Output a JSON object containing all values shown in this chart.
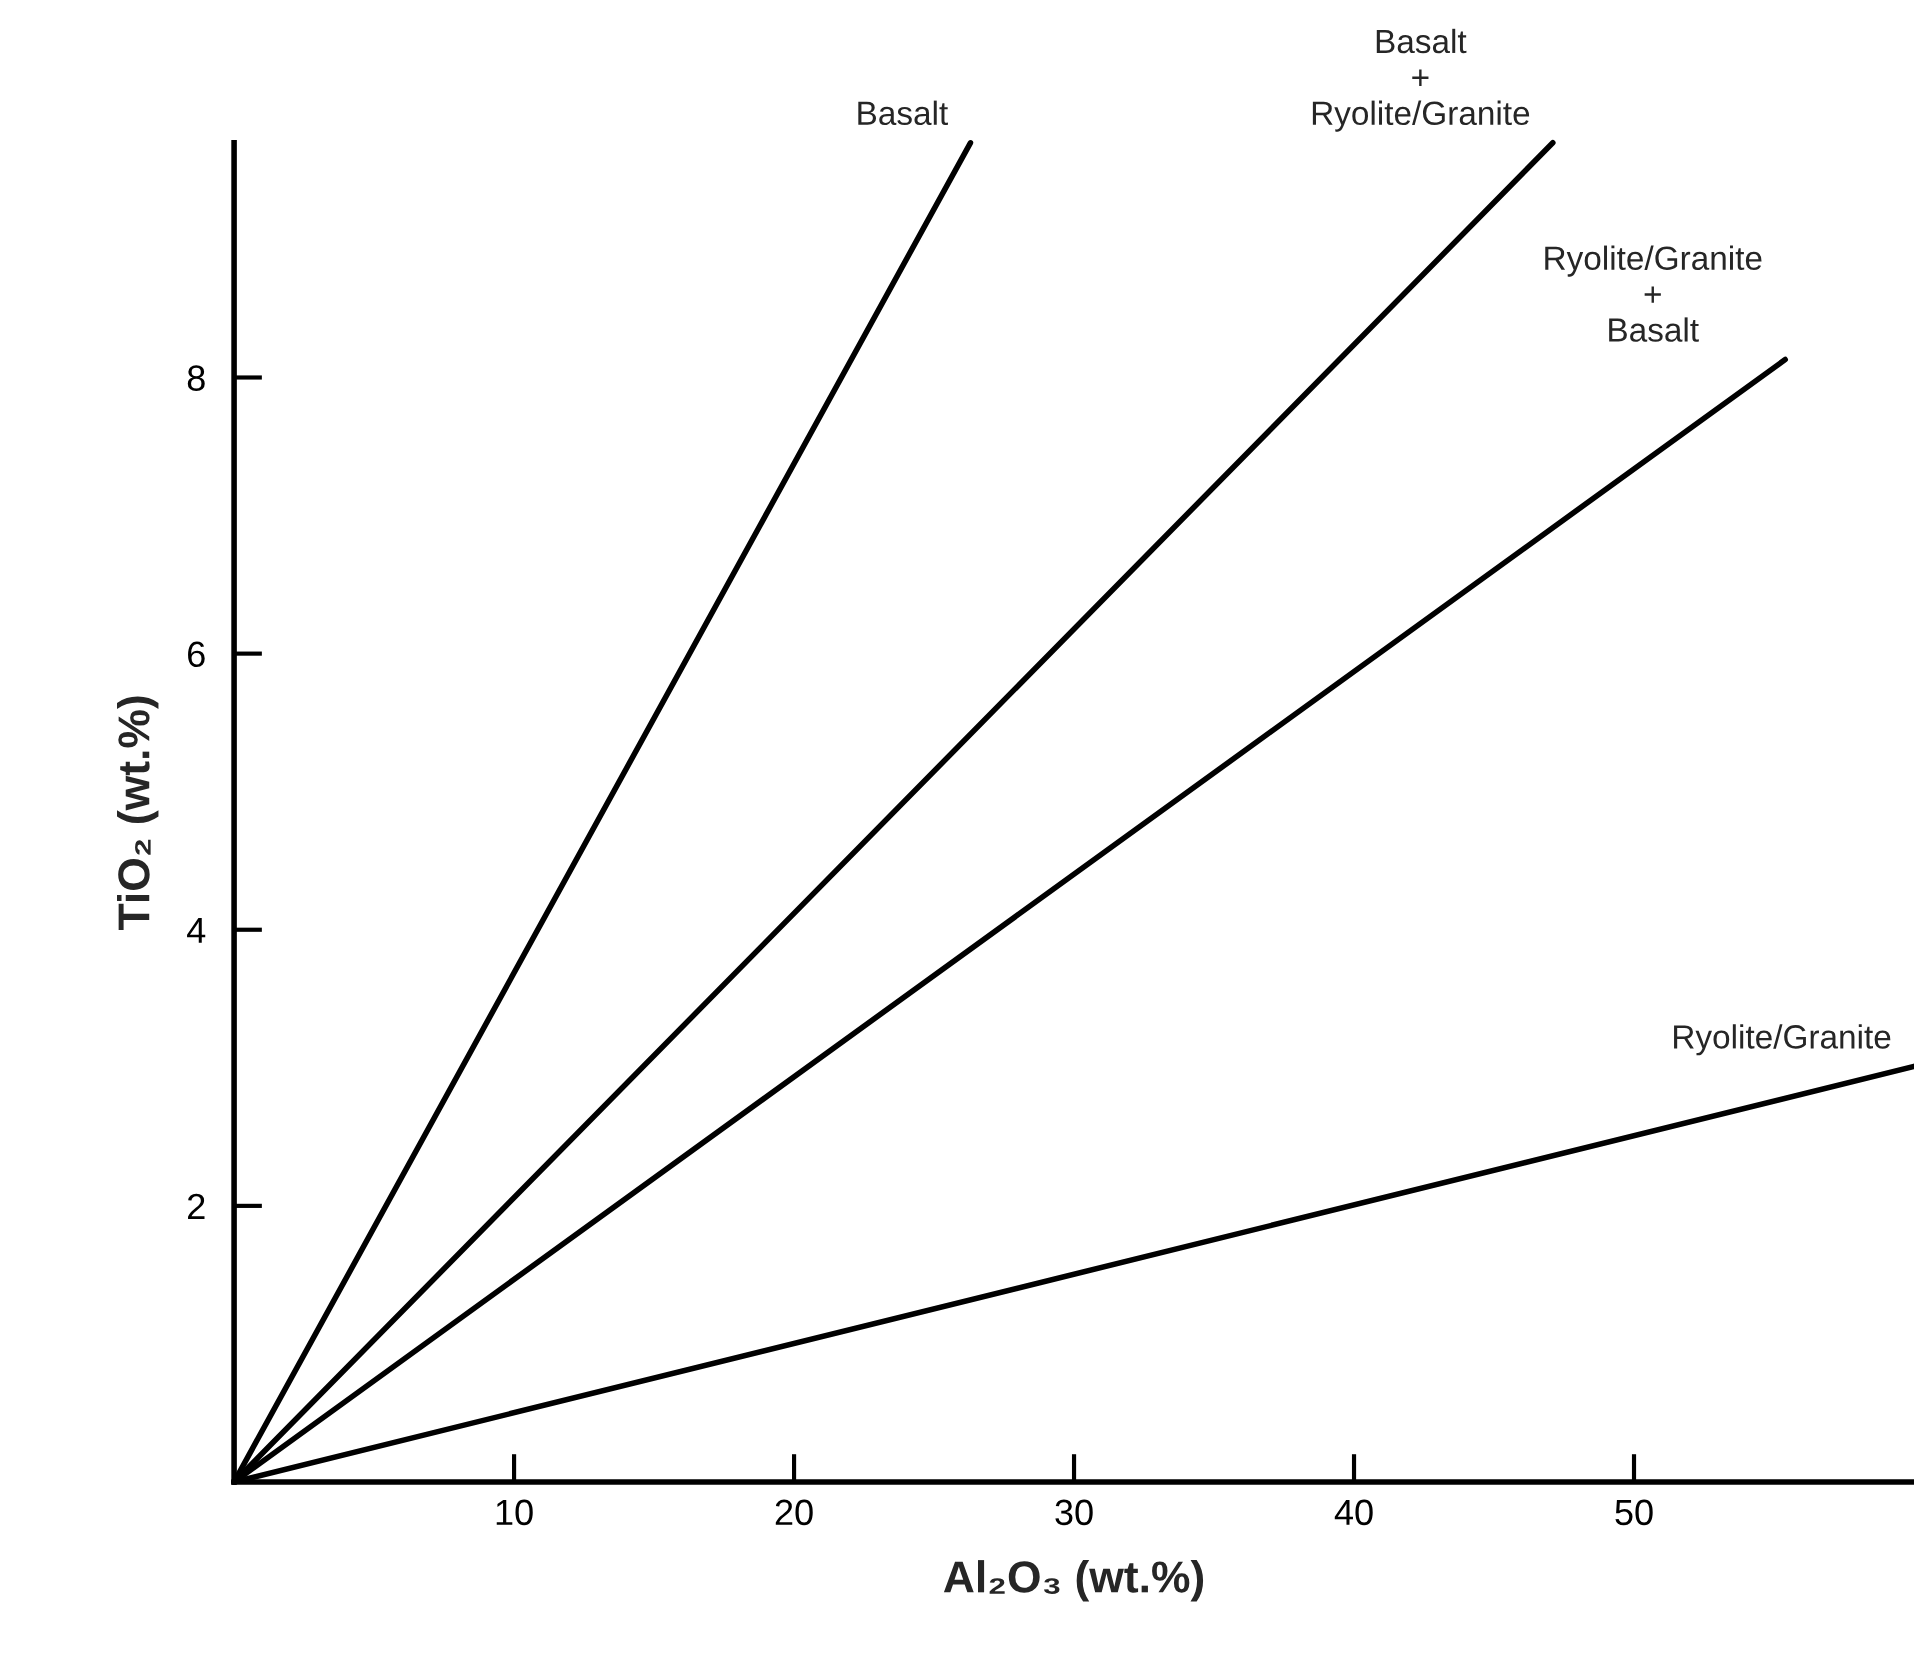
{
  "chart_data": {
    "type": "line",
    "xlabel": "Al₂O₃ (wt.%)",
    "ylabel": "TiO₂ (wt.%)",
    "series": [
      {
        "name": "Basalt",
        "color": "#000000",
        "x": [
          0,
          26.3
        ],
        "values": [
          0,
          9.7
        ]
      },
      {
        "name": "Basalt\n+\nRyolite/Granite",
        "color": "#000000",
        "x": [
          0,
          47.1
        ],
        "values": [
          0,
          9.7
        ]
      },
      {
        "name": "Ryolite/Granite\n+\nBasalt",
        "color": "#000000",
        "x": [
          0,
          55.4
        ],
        "values": [
          0,
          8.13
        ]
      },
      {
        "name": "Ryolite/Granite",
        "color": "#000000",
        "x": [
          0,
          60
        ],
        "values": [
          0,
          3.01
        ]
      }
    ],
    "xlim": [
      0,
      60
    ],
    "ylim": [
      0,
      9.7
    ],
    "xticks": [
      10,
      20,
      30,
      40,
      50
    ],
    "yticks": [
      2,
      4,
      6,
      8
    ],
    "grid": false,
    "legend": false,
    "marker": "none",
    "line_style": "solid"
  }
}
